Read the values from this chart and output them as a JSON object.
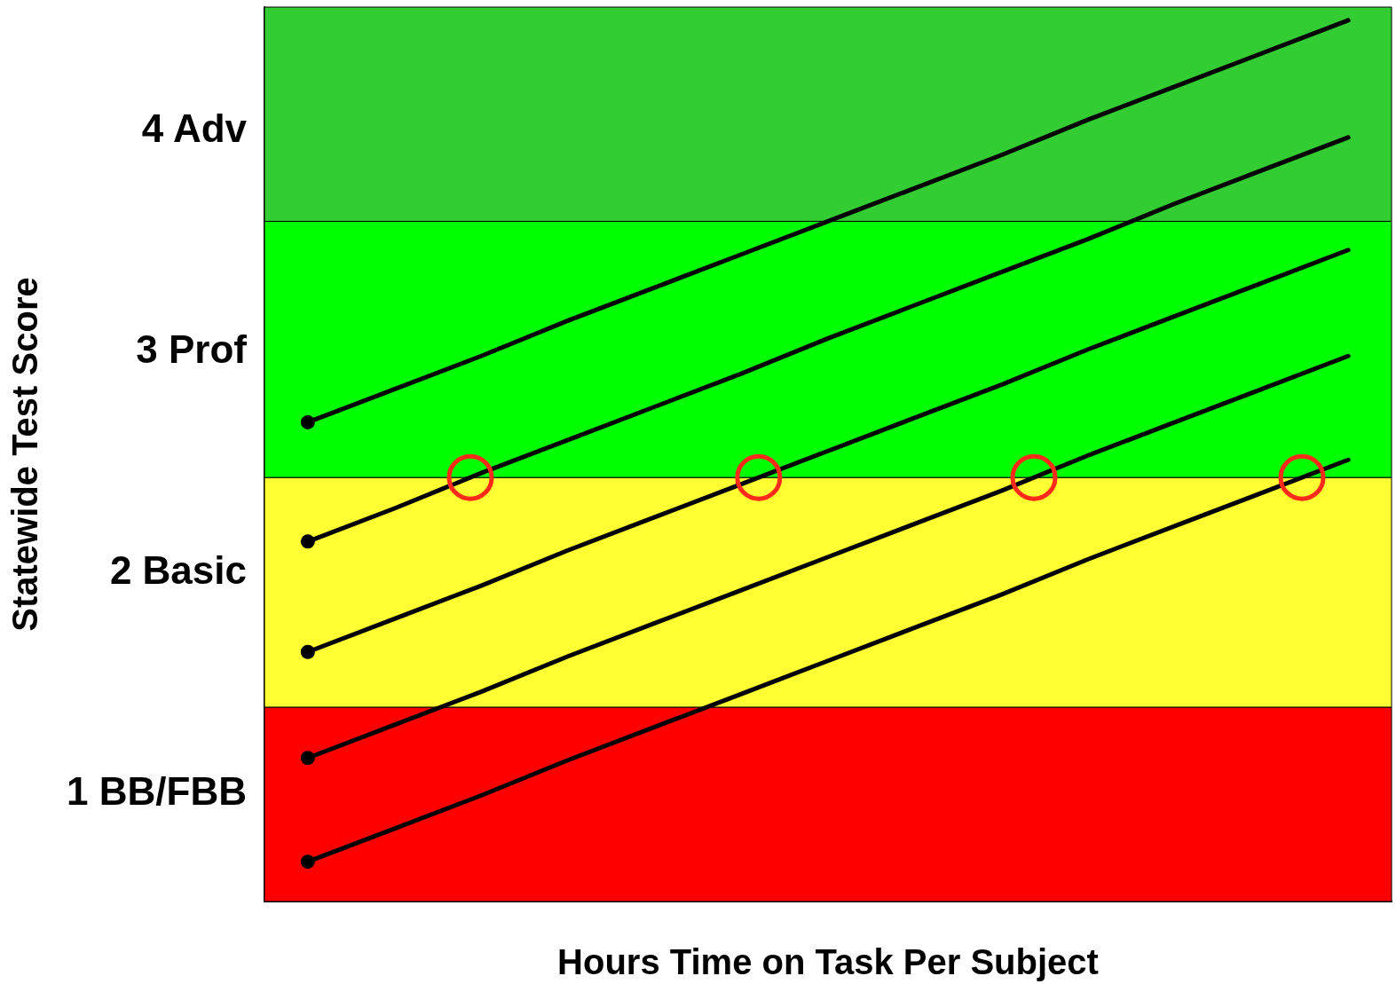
{
  "chart_data": {
    "type": "line",
    "xlabel": "Hours Time on Task Per Subject",
    "ylabel": "Statewide Test Score",
    "categories": [
      null,
      null,
      null,
      null,
      null,
      null,
      null,
      null,
      null,
      null,
      null,
      null,
      null
    ],
    "ylim": [
      0.5,
      4.55
    ],
    "yticks": [
      {
        "value": 1,
        "label": "1 BB/FBB"
      },
      {
        "value": 2,
        "label": "2 Basic"
      },
      {
        "value": 3,
        "label": "3 Prof"
      },
      {
        "value": 4,
        "label": "4 Adv"
      }
    ],
    "tick_labels": "y",
    "grid": false,
    "line_style": "solid",
    "series": [
      {
        "color": "#000000",
        "values": [
          2.67,
          2.82,
          2.97,
          3.13,
          3.28,
          3.43,
          3.58,
          3.73,
          3.88,
          4.04,
          4.19,
          4.34,
          4.49
        ]
      },
      {
        "color": "#000000",
        "values": [
          2.13,
          2.28,
          2.44,
          2.59,
          2.74,
          2.89,
          3.05,
          3.2,
          3.35,
          3.5,
          3.66,
          3.81,
          3.96
        ]
      },
      {
        "color": "#000000",
        "values": [
          1.63,
          1.78,
          1.93,
          2.09,
          2.24,
          2.39,
          2.54,
          2.69,
          2.84,
          3.0,
          3.15,
          3.3,
          3.45
        ]
      },
      {
        "color": "#000000",
        "values": [
          1.15,
          1.3,
          1.45,
          1.61,
          1.76,
          1.91,
          2.06,
          2.21,
          2.36,
          2.52,
          2.67,
          2.82,
          2.97
        ]
      },
      {
        "color": "#000000",
        "values": [
          0.68,
          0.83,
          0.98,
          1.14,
          1.29,
          1.44,
          1.59,
          1.74,
          1.89,
          2.05,
          2.2,
          2.35,
          2.5
        ]
      }
    ],
    "bands": [
      {
        "axis": "y",
        "from": 0.5,
        "to": 1.38,
        "color": "#ff0000"
      },
      {
        "axis": "y",
        "from": 1.38,
        "to": 2.42,
        "color": "#ffff33"
      },
      {
        "axis": "y",
        "from": 2.42,
        "to": 3.58,
        "color": "#00ff00"
      },
      {
        "axis": "y",
        "from": 3.58,
        "to": 4.55,
        "color": "#33cc33"
      }
    ]
  }
}
